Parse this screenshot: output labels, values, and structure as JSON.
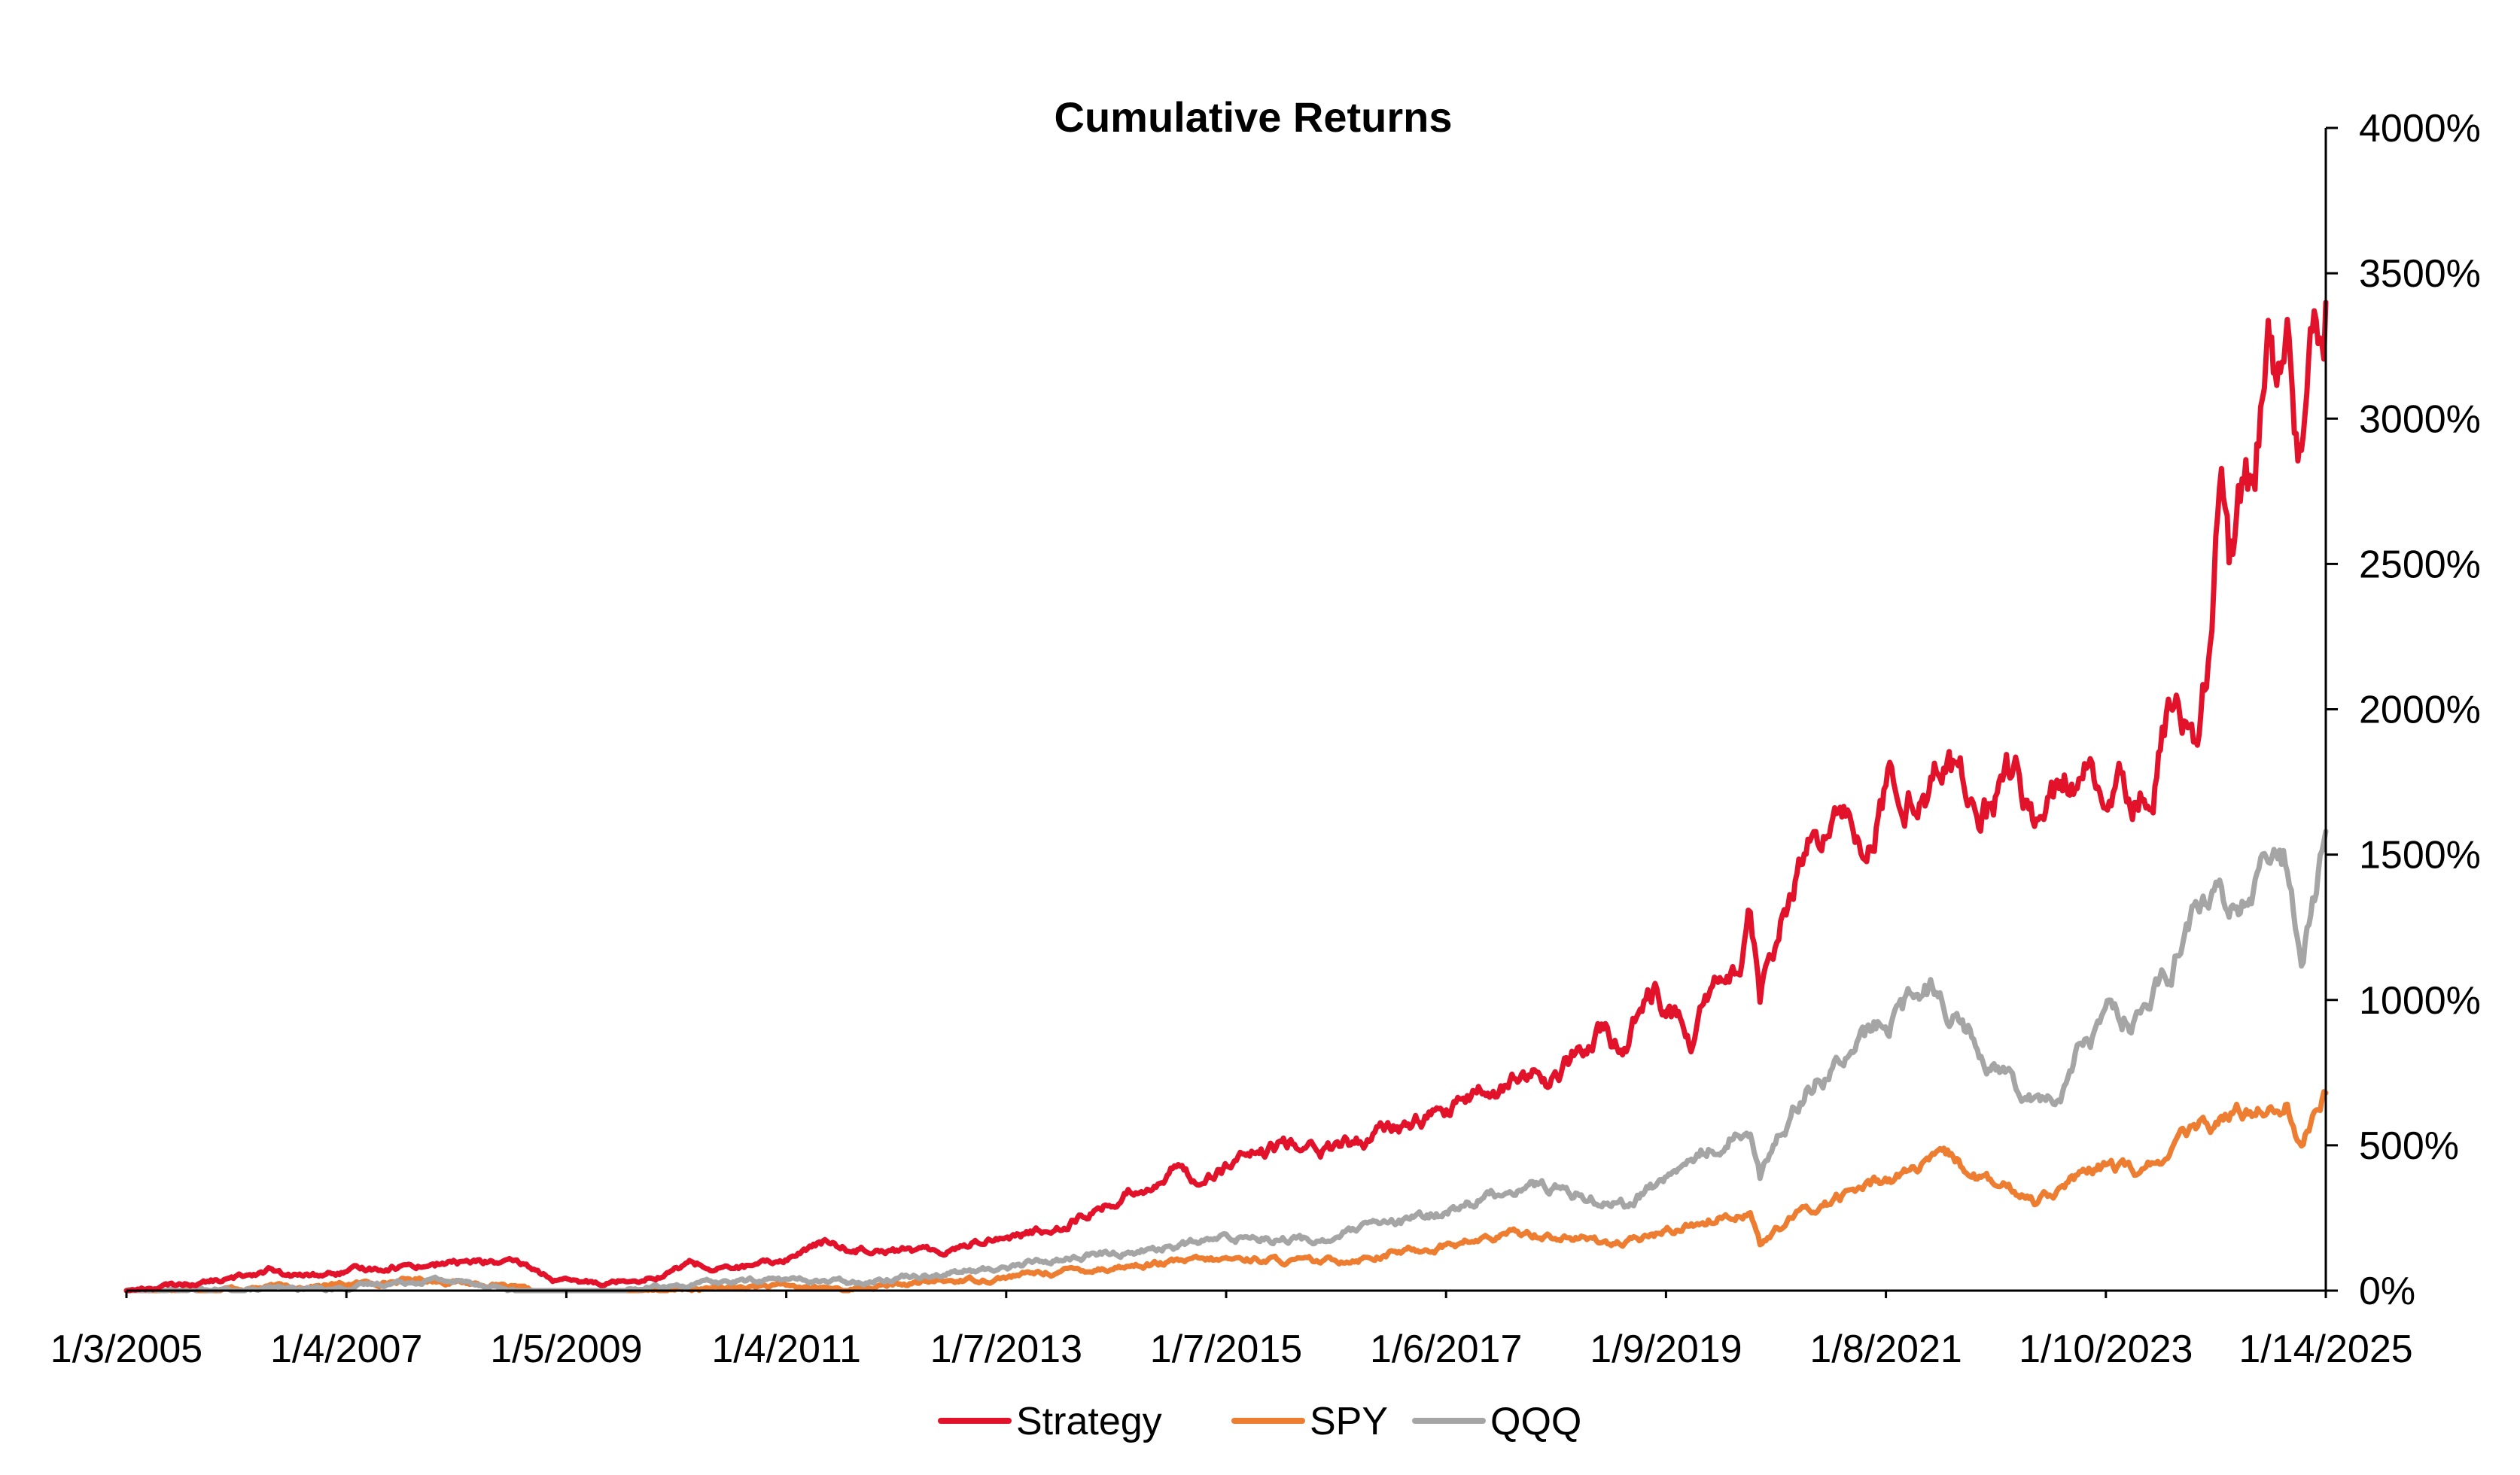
{
  "chart_data": {
    "type": "line",
    "title": "Cumulative Returns",
    "xlabel": "",
    "ylabel": "",
    "x_tick_labels": [
      "1/3/2005",
      "1/4/2007",
      "1/5/2009",
      "1/4/2011",
      "1/7/2013",
      "1/7/2015",
      "1/6/2017",
      "1/9/2019",
      "1/8/2021",
      "1/10/2023",
      "1/14/2025"
    ],
    "x_range": [
      "2005-01-03",
      "2025-06-30"
    ],
    "y_tick_labels": [
      "0%",
      "500%",
      "1000%",
      "1500%",
      "2000%",
      "2500%",
      "3000%",
      "3500%",
      "4000%"
    ],
    "y_unit": "%",
    "ylim": [
      0,
      4000
    ],
    "y_axis_position": "right",
    "grid": false,
    "legend_position": "bottom-center",
    "series": [
      {
        "name": "Strategy",
        "color": "#e3122b",
        "points": [
          [
            "2005-01-03",
            0
          ],
          [
            "2005-07-01",
            20
          ],
          [
            "2006-01-02",
            40
          ],
          [
            "2006-05-01",
            75
          ],
          [
            "2006-07-01",
            45
          ],
          [
            "2007-01-04",
            60
          ],
          [
            "2007-07-01",
            85
          ],
          [
            "2008-01-02",
            95
          ],
          [
            "2008-06-01",
            100
          ],
          [
            "2008-10-01",
            80
          ],
          [
            "2009-01-05",
            35
          ],
          [
            "2009-03-09",
            25
          ],
          [
            "2009-07-01",
            30
          ],
          [
            "2010-01-04",
            55
          ],
          [
            "2010-04-15",
            100
          ],
          [
            "2010-07-01",
            70
          ],
          [
            "2011-01-04",
            90
          ],
          [
            "2011-04-01",
            125
          ],
          [
            "2011-07-01",
            165
          ],
          [
            "2011-10-01",
            140
          ],
          [
            "2012-01-03",
            155
          ],
          [
            "2012-07-01",
            130
          ],
          [
            "2013-01-07",
            180
          ],
          [
            "2013-07-01",
            200
          ],
          [
            "2014-01-02",
            270
          ],
          [
            "2014-07-01",
            360
          ],
          [
            "2014-10-15",
            420
          ],
          [
            "2015-01-07",
            390
          ],
          [
            "2015-05-01",
            440
          ],
          [
            "2015-08-25",
            470
          ],
          [
            "2016-01-04",
            530
          ],
          [
            "2016-02-11",
            470
          ],
          [
            "2016-07-01",
            510
          ],
          [
            "2017-01-06",
            580
          ],
          [
            "2017-07-01",
            650
          ],
          [
            "2018-01-26",
            740
          ],
          [
            "2018-04-01",
            720
          ],
          [
            "2018-10-01",
            880
          ],
          [
            "2018-12-24",
            820
          ],
          [
            "2019-01-09",
            900
          ],
          [
            "2019-04-01",
            1040
          ],
          [
            "2019-06-01",
            960
          ],
          [
            "2019-08-01",
            850
          ],
          [
            "2019-10-01",
            1010
          ],
          [
            "2020-01-15",
            1100
          ],
          [
            "2020-02-19",
            1280
          ],
          [
            "2020-03-23",
            980
          ],
          [
            "2020-06-01",
            1280
          ],
          [
            "2020-09-02",
            1500
          ],
          [
            "2020-11-01",
            1520
          ],
          [
            "2021-01-08",
            1620
          ],
          [
            "2021-03-01",
            1580
          ],
          [
            "2021-06-01",
            1720
          ],
          [
            "2021-11-19",
            1800
          ],
          [
            "2022-01-27",
            1740
          ],
          [
            "2022-05-20",
            1640
          ],
          [
            "2022-08-16",
            1780
          ],
          [
            "2022-10-13",
            1640
          ],
          [
            "2023-01-10",
            1720
          ],
          [
            "2023-04-01",
            1760
          ],
          [
            "2023-07-01",
            1800
          ],
          [
            "2023-10-27",
            1700
          ],
          [
            "2023-12-15",
            1880
          ],
          [
            "2024-02-01",
            2050
          ],
          [
            "2024-04-19",
            1780
          ],
          [
            "2024-06-01",
            2150
          ],
          [
            "2024-07-10",
            2800
          ],
          [
            "2024-08-05",
            2500
          ],
          [
            "2024-10-01",
            2800
          ],
          [
            "2024-11-01",
            2650
          ],
          [
            "2024-12-16",
            3350
          ],
          [
            "2025-01-14",
            3200
          ],
          [
            "2025-02-19",
            3470
          ],
          [
            "2025-03-15",
            3100
          ],
          [
            "2025-04-08",
            2900
          ],
          [
            "2025-05-15",
            3250
          ],
          [
            "2025-06-30",
            3400
          ]
        ]
      },
      {
        "name": "SPY",
        "color": "#ed7d31",
        "points": [
          [
            "2005-01-03",
            0
          ],
          [
            "2006-01-02",
            8
          ],
          [
            "2007-01-04",
            20
          ],
          [
            "2007-10-09",
            40
          ],
          [
            "2008-06-01",
            20
          ],
          [
            "2009-03-09",
            -30
          ],
          [
            "2009-07-01",
            -15
          ],
          [
            "2010-01-04",
            0
          ],
          [
            "2011-01-04",
            15
          ],
          [
            "2011-10-03",
            5
          ],
          [
            "2012-07-01",
            30
          ],
          [
            "2013-01-07",
            40
          ],
          [
            "2013-07-01",
            60
          ],
          [
            "2014-07-01",
            90
          ],
          [
            "2015-07-01",
            110
          ],
          [
            "2016-02-11",
            95
          ],
          [
            "2016-07-01",
            115
          ],
          [
            "2017-01-06",
            140
          ],
          [
            "2018-01-26",
            200
          ],
          [
            "2018-12-24",
            160
          ],
          [
            "2019-07-01",
            220
          ],
          [
            "2020-02-19",
            280
          ],
          [
            "2020-03-23",
            160
          ],
          [
            "2020-08-01",
            260
          ],
          [
            "2021-01-08",
            330
          ],
          [
            "2021-07-01",
            400
          ],
          [
            "2022-01-03",
            450
          ],
          [
            "2022-06-16",
            350
          ],
          [
            "2022-10-13",
            320
          ],
          [
            "2023-01-10",
            360
          ],
          [
            "2023-07-01",
            430
          ],
          [
            "2023-10-27",
            400
          ],
          [
            "2024-01-02",
            470
          ],
          [
            "2024-04-01",
            540
          ],
          [
            "2024-07-16",
            590
          ],
          [
            "2024-12-06",
            640
          ],
          [
            "2025-02-19",
            650
          ],
          [
            "2025-04-08",
            500
          ],
          [
            "2025-06-30",
            680
          ]
        ]
      },
      {
        "name": "QQQ",
        "color": "#a5a5a5",
        "points": [
          [
            "2005-01-03",
            0
          ],
          [
            "2006-01-02",
            0
          ],
          [
            "2007-01-04",
            10
          ],
          [
            "2007-10-31",
            40
          ],
          [
            "2008-06-01",
            20
          ],
          [
            "2008-11-20",
            -35
          ],
          [
            "2009-03-09",
            -20
          ],
          [
            "2010-01-04",
            15
          ],
          [
            "2011-01-04",
            40
          ],
          [
            "2011-10-03",
            30
          ],
          [
            "2012-07-01",
            60
          ],
          [
            "2013-01-07",
            70
          ],
          [
            "2013-07-01",
            100
          ],
          [
            "2014-07-01",
            140
          ],
          [
            "2015-07-01",
            190
          ],
          [
            "2016-02-11",
            170
          ],
          [
            "2016-07-01",
            210
          ],
          [
            "2017-01-06",
            240
          ],
          [
            "2018-01-26",
            370
          ],
          [
            "2018-12-24",
            300
          ],
          [
            "2019-07-01",
            420
          ],
          [
            "2020-02-19",
            580
          ],
          [
            "2020-03-23",
            400
          ],
          [
            "2020-09-02",
            720
          ],
          [
            "2021-01-08",
            800
          ],
          [
            "2021-07-01",
            950
          ],
          [
            "2021-11-19",
            1060
          ],
          [
            "2022-03-01",
            900
          ],
          [
            "2022-06-16",
            760
          ],
          [
            "2022-10-13",
            690
          ],
          [
            "2022-12-28",
            660
          ],
          [
            "2023-03-01",
            800
          ],
          [
            "2023-07-19",
            990
          ],
          [
            "2023-10-27",
            930
          ],
          [
            "2024-01-02",
            1080
          ],
          [
            "2024-04-01",
            1250
          ],
          [
            "2024-07-10",
            1400
          ],
          [
            "2024-08-05",
            1250
          ],
          [
            "2024-12-16",
            1470
          ],
          [
            "2025-02-19",
            1480
          ],
          [
            "2025-04-08",
            1130
          ],
          [
            "2025-06-30",
            1580
          ]
        ]
      }
    ]
  }
}
